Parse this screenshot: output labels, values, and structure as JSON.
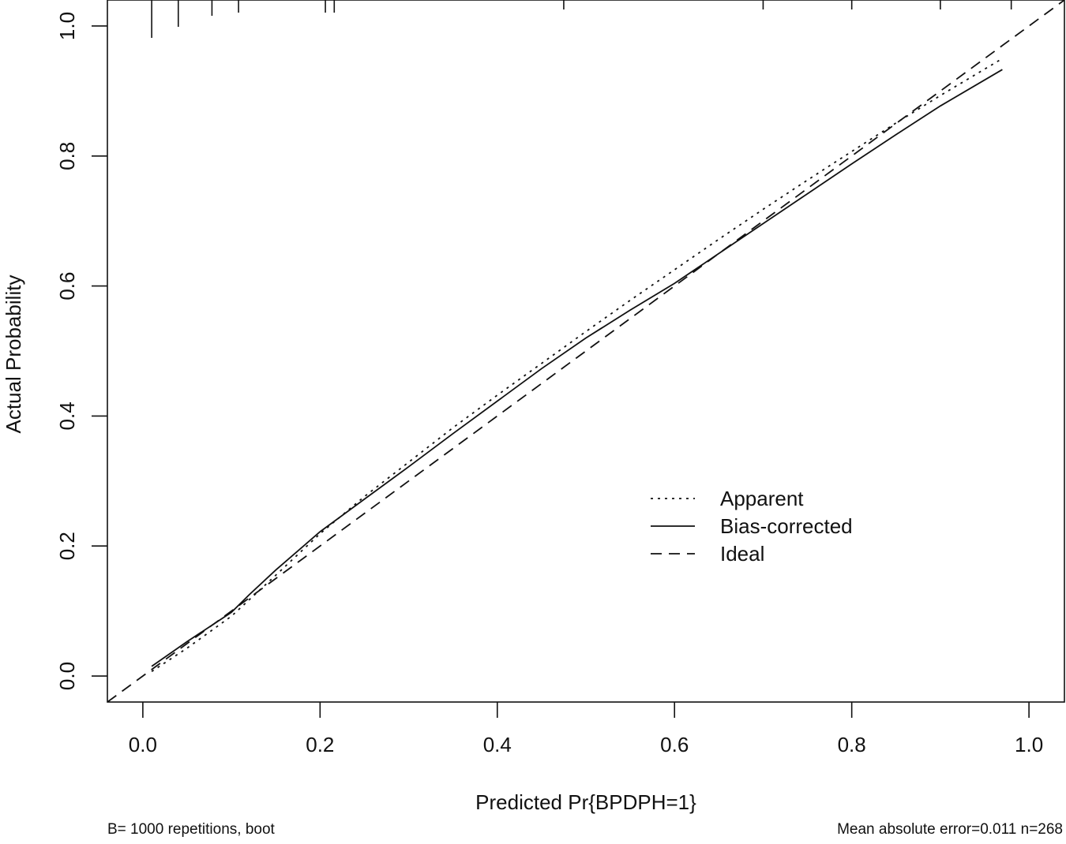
{
  "chart_data": {
    "type": "line",
    "title": "",
    "xlabel": "Predicted Pr{BPDPH=1}",
    "ylabel": "Actual Probability",
    "xlim": [
      -0.04,
      1.04
    ],
    "ylim": [
      -0.04,
      1.04
    ],
    "x_ticks": [
      0.0,
      0.2,
      0.4,
      0.6,
      0.8,
      1.0
    ],
    "x_tick_labels": [
      "0.0",
      "0.2",
      "0.4",
      "0.6",
      "0.8",
      "1.0"
    ],
    "y_ticks": [
      0.0,
      0.2,
      0.4,
      0.6,
      0.8,
      1.0
    ],
    "y_tick_labels": [
      "0.0",
      "0.2",
      "0.4",
      "0.6",
      "0.8",
      "1.0"
    ],
    "grid": false,
    "legend": {
      "placement": "lower-right",
      "entries": [
        "Apparent",
        "Bias-corrected",
        "Ideal"
      ]
    },
    "series": [
      {
        "name": "Apparent",
        "style": "dotted",
        "x": [
          0.01,
          0.05,
          0.1,
          0.15,
          0.2,
          0.25,
          0.3,
          0.35,
          0.4,
          0.45,
          0.5,
          0.55,
          0.6,
          0.65,
          0.7,
          0.75,
          0.8,
          0.85,
          0.9,
          0.97
        ],
        "y": [
          0.007,
          0.043,
          0.092,
          0.155,
          0.219,
          0.276,
          0.329,
          0.382,
          0.432,
          0.481,
          0.53,
          0.578,
          0.625,
          0.672,
          0.718,
          0.763,
          0.807,
          0.851,
          0.893,
          0.95
        ]
      },
      {
        "name": "Bias-corrected",
        "style": "solid",
        "x": [
          0.01,
          0.05,
          0.08,
          0.1,
          0.12,
          0.15,
          0.2,
          0.25,
          0.3,
          0.35,
          0.4,
          0.45,
          0.5,
          0.55,
          0.6,
          0.65,
          0.7,
          0.75,
          0.8,
          0.85,
          0.9,
          0.97
        ],
        "y": [
          0.015,
          0.053,
          0.08,
          0.098,
          0.125,
          0.163,
          0.222,
          0.272,
          0.322,
          0.373,
          0.423,
          0.473,
          0.52,
          0.563,
          0.604,
          0.65,
          0.696,
          0.742,
          0.788,
          0.833,
          0.877,
          0.933
        ]
      },
      {
        "name": "Ideal",
        "style": "dashed",
        "x": [
          -0.04,
          1.04
        ],
        "y": [
          -0.04,
          1.04
        ]
      }
    ],
    "rug": [
      0.01,
      0.04,
      0.078,
      0.108,
      0.206,
      0.216,
      0.475,
      0.7,
      0.8,
      0.9,
      0.98
    ],
    "footnotes": {
      "left": "B= 1000 repetitions, boot",
      "right": "Mean absolute error=0.011 n=268"
    }
  }
}
